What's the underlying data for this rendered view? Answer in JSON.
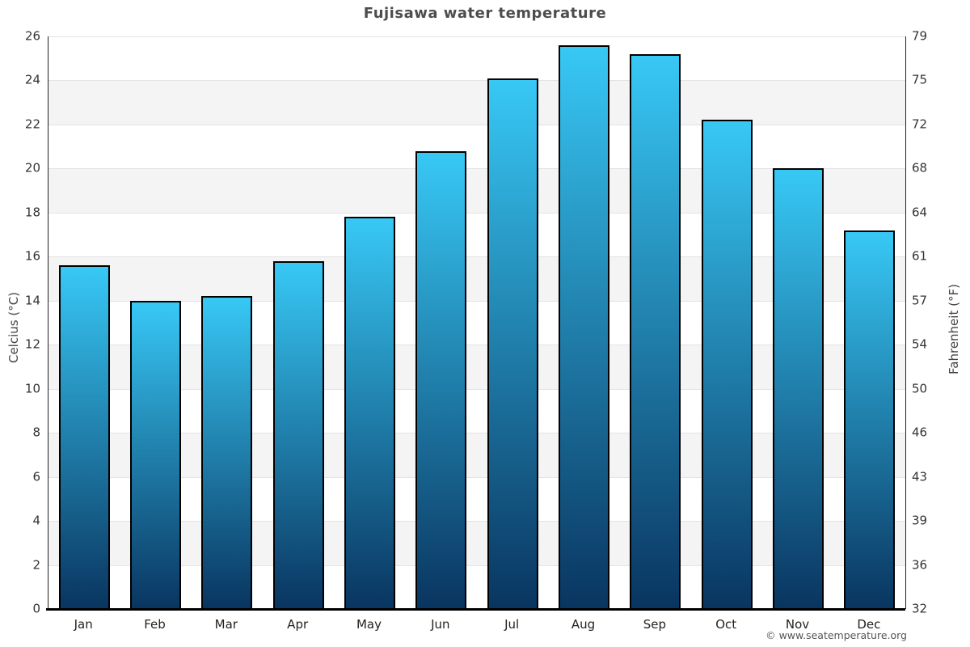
{
  "title": "Fujisawa water temperature",
  "footer": {
    "credit": "© www.seatemperature.org"
  },
  "axes": {
    "left_label": "Celcius (°C)",
    "right_label": "Fahrenheit (°F)"
  },
  "chart_data": {
    "type": "bar",
    "title": "Fujisawa water temperature",
    "categories": [
      "Jan",
      "Feb",
      "Mar",
      "Apr",
      "May",
      "Jun",
      "Jul",
      "Aug",
      "Sep",
      "Oct",
      "Nov",
      "Dec"
    ],
    "values": [
      15.6,
      14.0,
      14.2,
      15.8,
      17.8,
      20.8,
      24.1,
      25.6,
      25.2,
      22.2,
      20.0,
      17.2
    ],
    "unit": "°C",
    "xlabel": "",
    "ylabel": "Celcius (°C)",
    "ylabel_secondary": "Fahrenheit (°F)",
    "ylim": [
      0,
      26
    ],
    "celsius_ticks_top_to_bottom": [
      26,
      24,
      22,
      20,
      18,
      16,
      14,
      12,
      10,
      8,
      6,
      4,
      2,
      0
    ],
    "fahrenheit_ticks_top_to_bottom": [
      79,
      75,
      72,
      68,
      64,
      61,
      57,
      54,
      50,
      46,
      43,
      39,
      36,
      32
    ],
    "grid": "horizontal gridlines every 2°C with alternating shaded bands",
    "legend": "none",
    "colors": {
      "bar_gradient_top": "#38c8f5",
      "bar_gradient_bottom": "#093560",
      "bar_border": "#000000",
      "band_shade": "#f4f4f4",
      "gridline": "#e3e3e3",
      "title_text": "#4d4d4d",
      "tick_text": "#333333",
      "axis_line": "#222222",
      "baseline": "#000000",
      "footer_text": "#555555"
    }
  }
}
